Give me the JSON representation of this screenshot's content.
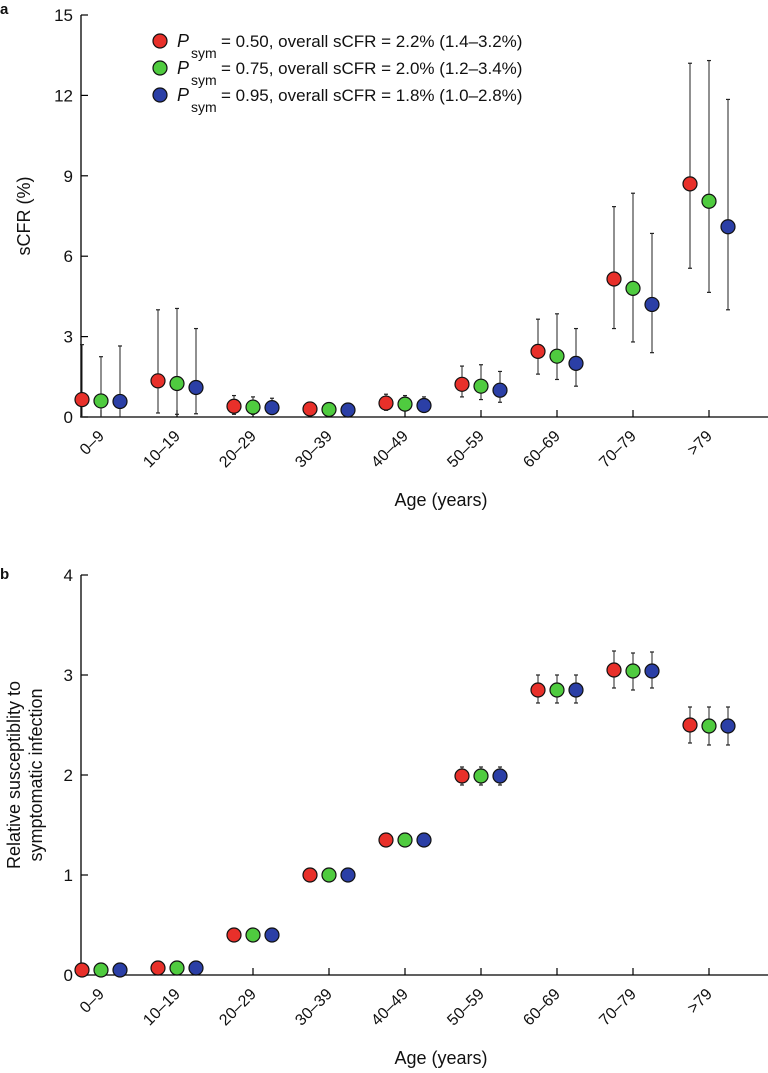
{
  "chart_data": [
    {
      "panel_label": "a",
      "type": "scatter",
      "xlabel": "Age (years)",
      "ylabel": "sCFR (%)",
      "ylim": [
        0,
        15
      ],
      "yticks": [
        0,
        3,
        6,
        9,
        12,
        15
      ],
      "categories": [
        "0–9",
        "10–19",
        "20–29",
        "30–39",
        "40–49",
        "50–59",
        "60–69",
        "70–79",
        ">79"
      ],
      "legend_position": "top-left",
      "series": [
        {
          "name_var": "P",
          "name_sub": "sym",
          "name_rest": " = 0.50, overall sCFR = 2.2% (1.4–3.2%)",
          "color": "#e8302a",
          "values": [
            0.65,
            1.35,
            0.4,
            0.3,
            0.52,
            1.22,
            2.45,
            5.15,
            8.7
          ],
          "lower": [
            0,
            0.15,
            0.1,
            0.1,
            0.25,
            0.75,
            1.6,
            3.3,
            5.55
          ],
          "upper": [
            2.7,
            4.0,
            0.8,
            0.55,
            0.85,
            1.9,
            3.65,
            7.85,
            13.2
          ]
        },
        {
          "name_var": "P",
          "name_sub": "sym",
          "name_rest": " = 0.75, overall sCFR = 2.0% (1.2–3.4%)",
          "color": "#4fcb3f",
          "values": [
            0.6,
            1.25,
            0.37,
            0.28,
            0.48,
            1.15,
            2.27,
            4.8,
            8.05
          ],
          "lower": [
            0,
            0.1,
            0.1,
            0.1,
            0.25,
            0.65,
            1.4,
            2.8,
            4.65
          ],
          "upper": [
            2.25,
            4.05,
            0.75,
            0.5,
            0.8,
            1.95,
            3.85,
            8.35,
            13.3
          ]
        },
        {
          "name_var": "P",
          "name_sub": "sym",
          "name_rest": " = 0.95, overall sCFR = 1.8% (1.0–2.8%)",
          "color": "#2b3fa6",
          "values": [
            0.58,
            1.1,
            0.35,
            0.26,
            0.43,
            1.0,
            2.0,
            4.2,
            7.1
          ],
          "lower": [
            0,
            0.12,
            0.1,
            0.1,
            0.25,
            0.55,
            1.15,
            2.4,
            4.0
          ],
          "upper": [
            2.65,
            3.3,
            0.7,
            0.45,
            0.75,
            1.7,
            3.3,
            6.85,
            11.85
          ]
        }
      ]
    },
    {
      "panel_label": "b",
      "type": "scatter",
      "xlabel": "Age (years)",
      "ylabel": [
        "Relative susceptiblity to",
        "symptomatic infection"
      ],
      "ylim": [
        0,
        4
      ],
      "yticks": [
        0,
        1,
        2,
        3,
        4
      ],
      "categories": [
        "0–9",
        "10–19",
        "20–29",
        "30–39",
        "40–49",
        "50–59",
        "60–69",
        "70–79",
        ">79"
      ],
      "series": [
        {
          "color": "#e8302a",
          "values": [
            0.05,
            0.07,
            0.4,
            1.0,
            1.35,
            1.99,
            2.85,
            3.05,
            2.5
          ],
          "lower": [
            0.05,
            0.07,
            0.4,
            1.0,
            1.3,
            1.9,
            2.72,
            2.87,
            2.32
          ],
          "upper": [
            0.05,
            0.07,
            0.4,
            1.0,
            1.4,
            2.08,
            3.0,
            3.24,
            2.68
          ]
        },
        {
          "color": "#4fcb3f",
          "values": [
            0.05,
            0.07,
            0.4,
            1.0,
            1.35,
            1.99,
            2.85,
            3.04,
            2.49
          ],
          "lower": [
            0.05,
            0.07,
            0.4,
            1.0,
            1.3,
            1.9,
            2.72,
            2.85,
            2.3
          ],
          "upper": [
            0.05,
            0.07,
            0.4,
            1.0,
            1.4,
            2.08,
            3.0,
            3.22,
            2.68
          ]
        },
        {
          "color": "#2b3fa6",
          "values": [
            0.05,
            0.07,
            0.4,
            1.0,
            1.35,
            1.99,
            2.85,
            3.04,
            2.49
          ],
          "lower": [
            0.05,
            0.07,
            0.4,
            1.0,
            1.3,
            1.9,
            2.72,
            2.87,
            2.3
          ],
          "upper": [
            0.05,
            0.07,
            0.4,
            1.0,
            1.4,
            2.08,
            3.0,
            3.23,
            2.68
          ]
        }
      ]
    }
  ]
}
